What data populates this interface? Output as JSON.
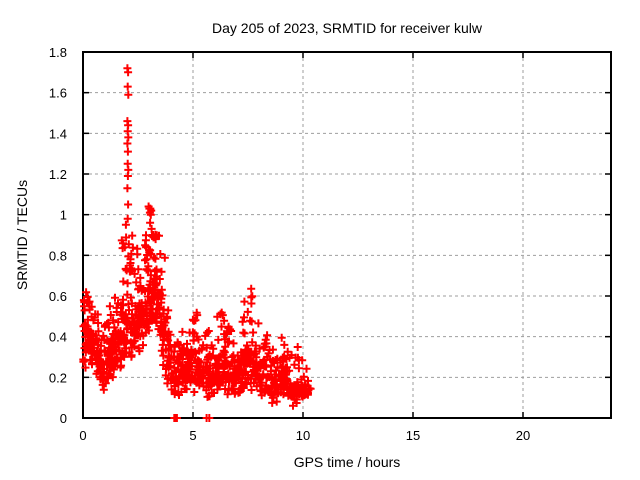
{
  "chart_data": {
    "type": "scatter",
    "title": "Day 205 of 2023, SRMTID for receiver kulw",
    "xlabel": "GPS time / hours",
    "ylabel": "SRMTID / TECUs",
    "xlim": [
      0,
      24
    ],
    "ylim": [
      0,
      1.8
    ],
    "xticks": [
      0,
      5,
      10,
      15,
      20
    ],
    "yticks": [
      0,
      0.2,
      0.4,
      0.6,
      0.8,
      1,
      1.2,
      1.4,
      1.6,
      1.8
    ],
    "grid": true,
    "legend": "none",
    "marker": {
      "shape": "plus",
      "color": "#ff0000",
      "size": 8,
      "stroke_width": 2
    },
    "colors": {
      "background": "#ffffff",
      "border": "#000000",
      "grid": "#9e9e9e",
      "text": "#000000"
    },
    "series": [
      {
        "name": "SRMTID",
        "x_start_hours": 0.0,
        "x_end_hours": 10.35,
        "seed": 20523,
        "bin_format": [
          "x_min_hours",
          "x_max_hours",
          "point_count",
          "core_y_min",
          "core_y_max",
          "peak_y"
        ],
        "bins": [
          [
            0.0,
            0.25,
            30,
            0.22,
            0.55,
            0.63
          ],
          [
            0.25,
            0.5,
            30,
            0.22,
            0.48,
            0.62
          ],
          [
            0.5,
            0.75,
            28,
            0.18,
            0.42,
            0.55
          ],
          [
            0.75,
            1.0,
            28,
            0.13,
            0.36,
            0.45
          ],
          [
            1.0,
            1.25,
            28,
            0.13,
            0.4,
            0.55
          ],
          [
            1.25,
            1.5,
            30,
            0.15,
            0.48,
            0.68
          ],
          [
            1.5,
            1.75,
            30,
            0.2,
            0.5,
            0.62
          ],
          [
            1.75,
            2.0,
            32,
            0.22,
            0.58,
            0.9
          ],
          [
            2.0,
            2.25,
            34,
            0.28,
            0.7,
            0.92
          ],
          [
            2.25,
            2.5,
            30,
            0.28,
            0.62,
            0.85
          ],
          [
            2.5,
            2.75,
            30,
            0.32,
            0.62,
            0.78
          ],
          [
            2.75,
            3.0,
            32,
            0.35,
            0.7,
            0.95
          ],
          [
            3.0,
            3.25,
            34,
            0.38,
            0.78,
            0.97
          ],
          [
            3.25,
            3.5,
            34,
            0.38,
            0.82,
            0.97
          ],
          [
            3.5,
            3.75,
            30,
            0.25,
            0.65,
            0.9
          ],
          [
            3.75,
            4.0,
            26,
            0.13,
            0.4,
            0.55
          ],
          [
            4.0,
            4.25,
            22,
            0.08,
            0.28,
            0.38
          ],
          [
            4.25,
            4.5,
            22,
            0.08,
            0.3,
            0.42
          ],
          [
            4.5,
            4.75,
            24,
            0.1,
            0.33,
            0.45
          ],
          [
            4.75,
            5.0,
            26,
            0.12,
            0.38,
            0.55
          ],
          [
            5.0,
            5.25,
            26,
            0.12,
            0.38,
            0.52
          ],
          [
            5.25,
            5.5,
            24,
            0.1,
            0.33,
            0.45
          ],
          [
            5.5,
            5.75,
            24,
            0.08,
            0.32,
            0.5
          ],
          [
            5.75,
            6.0,
            24,
            0.08,
            0.3,
            0.4
          ],
          [
            6.0,
            6.25,
            26,
            0.1,
            0.34,
            0.5
          ],
          [
            6.25,
            6.5,
            26,
            0.12,
            0.38,
            0.55
          ],
          [
            6.5,
            6.75,
            24,
            0.1,
            0.33,
            0.45
          ],
          [
            6.75,
            7.0,
            24,
            0.08,
            0.3,
            0.42
          ],
          [
            7.0,
            7.25,
            26,
            0.1,
            0.34,
            0.55
          ],
          [
            7.25,
            7.5,
            28,
            0.12,
            0.38,
            0.6
          ],
          [
            7.5,
            7.75,
            28,
            0.12,
            0.42,
            0.65
          ],
          [
            7.75,
            8.0,
            26,
            0.1,
            0.34,
            0.5
          ],
          [
            8.0,
            8.25,
            24,
            0.08,
            0.3,
            0.45
          ],
          [
            8.25,
            8.5,
            24,
            0.08,
            0.3,
            0.42
          ],
          [
            8.5,
            8.75,
            22,
            0.07,
            0.25,
            0.35
          ],
          [
            8.75,
            9.0,
            22,
            0.07,
            0.25,
            0.35
          ],
          [
            9.0,
            9.25,
            24,
            0.08,
            0.28,
            0.42
          ],
          [
            9.25,
            9.5,
            22,
            0.07,
            0.25,
            0.38
          ],
          [
            9.5,
            9.75,
            20,
            0.05,
            0.2,
            0.3
          ],
          [
            9.75,
            10.0,
            22,
            0.07,
            0.22,
            0.35
          ],
          [
            10.0,
            10.35,
            20,
            0.07,
            0.18,
            0.28
          ]
        ],
        "notable_points_format": [
          "x_hours",
          "y_tecus"
        ],
        "notable_points": [
          [
            2.02,
            1.72
          ],
          [
            2.05,
            1.7
          ],
          [
            2.03,
            1.63
          ],
          [
            2.06,
            1.59
          ],
          [
            2.02,
            1.46
          ],
          [
            2.05,
            1.44
          ],
          [
            2.03,
            1.41
          ],
          [
            2.06,
            1.38
          ],
          [
            2.02,
            1.35
          ],
          [
            2.04,
            1.31
          ],
          [
            2.03,
            1.25
          ],
          [
            2.06,
            1.22
          ],
          [
            2.04,
            1.19
          ],
          [
            2.02,
            1.13
          ],
          [
            2.05,
            1.05
          ],
          [
            2.03,
            0.98
          ],
          [
            1.95,
            0.95
          ],
          [
            1.9,
            0.84
          ],
          [
            2.98,
            1.04
          ],
          [
            3.02,
            1.03
          ],
          [
            3.06,
            1.03
          ],
          [
            3.1,
            1.02
          ],
          [
            3.04,
            1.01
          ],
          [
            3.08,
            1.0
          ],
          [
            3.05,
            0.96
          ],
          [
            3.12,
            0.93
          ],
          [
            3.18,
            0.9
          ],
          [
            3.3,
            0.88
          ],
          [
            0.04,
            0.58
          ],
          [
            0.06,
            0.57
          ],
          [
            0.05,
            0.55
          ]
        ],
        "zero_points": [
          [
            4.15,
            0
          ],
          [
            4.18,
            0
          ],
          [
            4.21,
            0
          ],
          [
            4.24,
            0
          ],
          [
            4.27,
            0
          ],
          [
            5.62,
            0
          ],
          [
            5.74,
            0
          ]
        ]
      }
    ]
  }
}
